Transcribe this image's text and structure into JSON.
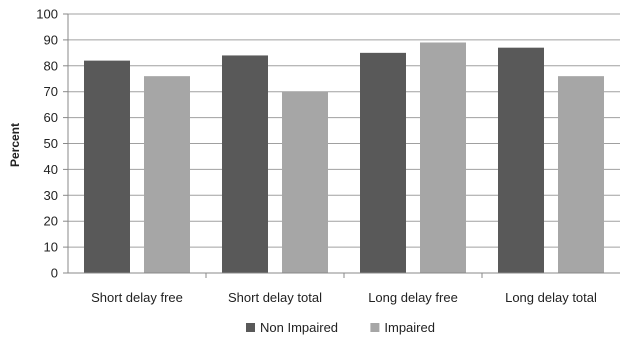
{
  "chart_data": {
    "type": "bar",
    "title": "",
    "xlabel": "",
    "ylabel": "Percent",
    "ylim": [
      0,
      100
    ],
    "yticks": [
      "0",
      "10",
      "20",
      "30",
      "40",
      "50",
      "60",
      "70",
      "80",
      "90",
      "100"
    ],
    "grid": true,
    "legend_position": "bottom",
    "categories": [
      "Short delay free",
      "Short delay total",
      "Long delay free",
      "Long delay total"
    ],
    "series": [
      {
        "name": "Non Impaired",
        "color": "#595959",
        "values": [
          82,
          84,
          85,
          87
        ]
      },
      {
        "name": "Impaired",
        "color": "#a6a6a6",
        "values": [
          76,
          70,
          89,
          76
        ]
      }
    ]
  }
}
